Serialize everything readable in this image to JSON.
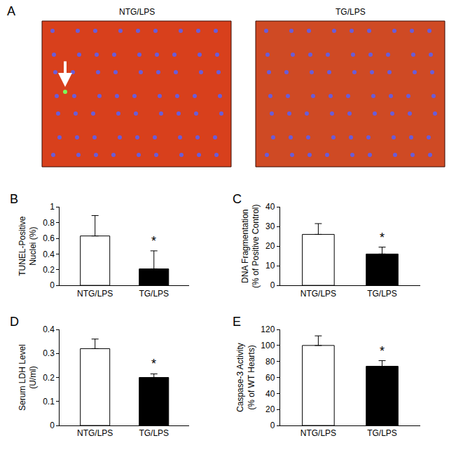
{
  "figure_panel": {
    "label": "A",
    "images": [
      "NTG/LPS",
      "TG/LPS"
    ]
  },
  "chart_data": [
    {
      "type": "bar",
      "label": "B",
      "y_label": [
        "TUNEL-Positive",
        "Nuclei (%)"
      ],
      "categories": [
        "NTG/LPS",
        "TG/LPS"
      ],
      "values": [
        0.63,
        0.21
      ],
      "errors": [
        0.26,
        0.23
      ],
      "colors": [
        "#ffffff",
        "#000000"
      ],
      "ylim": [
        0,
        1
      ],
      "yticks": [
        0,
        0.2,
        0.4,
        0.6,
        0.8,
        1
      ],
      "grid": false,
      "annotations": [
        {
          "category": "TG/LPS",
          "text": "*"
        }
      ]
    },
    {
      "type": "bar",
      "label": "C",
      "y_label": [
        "DNA Fragmentation",
        "(% of Positive Control)"
      ],
      "categories": [
        "NTG/LPS",
        "TG/LPS"
      ],
      "values": [
        26,
        16
      ],
      "errors": [
        5.5,
        3.5
      ],
      "colors": [
        "#ffffff",
        "#000000"
      ],
      "ylim": [
        0,
        40
      ],
      "yticks": [
        0,
        10,
        20,
        30,
        40
      ],
      "grid": false,
      "annotations": [
        {
          "category": "TG/LPS",
          "text": "*"
        }
      ]
    },
    {
      "type": "bar",
      "label": "D",
      "y_label": [
        "Serum LDH Level",
        "(U/ml)"
      ],
      "categories": [
        "NTG/LPS",
        "TG/LPS"
      ],
      "values": [
        0.32,
        0.2
      ],
      "errors": [
        0.04,
        0.015
      ],
      "colors": [
        "#ffffff",
        "#000000"
      ],
      "ylim": [
        0,
        0.4
      ],
      "yticks": [
        0,
        0.1,
        0.2,
        0.3,
        0.4
      ],
      "grid": false,
      "annotations": [
        {
          "category": "TG/LPS",
          "text": "*"
        }
      ]
    },
    {
      "type": "bar",
      "label": "E",
      "y_label": [
        "Caspase-3 Activity",
        "(% of WT Hearts)"
      ],
      "categories": [
        "NTG/LPS",
        "TG/LPS"
      ],
      "values": [
        100,
        74
      ],
      "errors": [
        12,
        7
      ],
      "colors": [
        "#ffffff",
        "#000000"
      ],
      "ylim": [
        0,
        120
      ],
      "yticks": [
        0,
        20,
        40,
        60,
        80,
        100,
        120
      ],
      "grid": false,
      "annotations": [
        {
          "category": "TG/LPS",
          "text": "*"
        }
      ]
    }
  ]
}
